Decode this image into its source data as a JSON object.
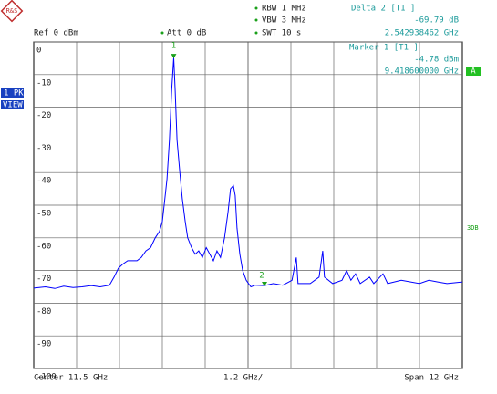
{
  "chart_data": {
    "type": "line",
    "annotations": {
      "ref": "Ref  0 dBm",
      "att": "Att  0 dB",
      "rbw": "RBW 1 MHz",
      "vbw": "VBW 3 MHz",
      "swt": "SWT 10 s",
      "delta_title": "Delta 2 [T1 ]",
      "delta_level": "-69.79 dB",
      "delta_freq": "2.542938462 GHz",
      "marker_title": "Marker 1 [T1 ]",
      "marker_level": "-4.78 dBm",
      "marker_freq": "9.418600000 GHz",
      "trace_mode_1": "1 PK",
      "trace_mode_2": "VIEW",
      "trace_flag": "A",
      "side_label": "3DB",
      "center": "Center  11.5 GHz",
      "per_div": "1.2 GHz/",
      "span": "Span  12 GHz"
    },
    "xlim": [
      5.5,
      17.5
    ],
    "ylim": [
      -100,
      0
    ],
    "yticks": [
      0,
      -10,
      -20,
      -30,
      -40,
      -50,
      -60,
      -70,
      -80,
      -90,
      -100
    ],
    "grid": true,
    "x": [
      5.5,
      5.83,
      6.09,
      6.34,
      6.6,
      6.85,
      7.11,
      7.36,
      7.62,
      7.75,
      7.87,
      8.0,
      8.13,
      8.39,
      8.51,
      8.64,
      8.77,
      8.9,
      9.02,
      9.1,
      9.15,
      9.23,
      9.3,
      9.36,
      9.42,
      9.46,
      9.51,
      9.59,
      9.66,
      9.74,
      9.81,
      9.92,
      10.02,
      10.12,
      10.22,
      10.33,
      10.43,
      10.53,
      10.63,
      10.73,
      10.84,
      10.94,
      11.01,
      11.09,
      11.14,
      11.19,
      11.27,
      11.35,
      11.45,
      11.58,
      11.7,
      11.96,
      12.21,
      12.47,
      12.73,
      12.85,
      12.9,
      13.24,
      13.49,
      13.59,
      13.64,
      13.87,
      14.13,
      14.26,
      14.38,
      14.51,
      14.64,
      14.9,
      15.02,
      15.28,
      15.41,
      15.79,
      16.3,
      16.56,
      16.81,
      17.07,
      17.5
    ],
    "series": [
      {
        "color": "#0000ff",
        "values": [
          -75.4,
          -75,
          -75.5,
          -74.8,
          -75.2,
          -75,
          -74.6,
          -75,
          -74.5,
          -72,
          -69.3,
          -68,
          -67,
          -67,
          -66,
          -64,
          -63,
          -60,
          -58,
          -55,
          -50,
          -42,
          -30,
          -15,
          -4.78,
          -15,
          -30,
          -40,
          -48,
          -55,
          -60,
          -63,
          -65,
          -64,
          -66,
          -63,
          -65,
          -67,
          -64,
          -66,
          -60,
          -52,
          -45,
          -44,
          -47,
          -57,
          -65,
          -70,
          -73,
          -75,
          -74.5,
          -74.6,
          -74,
          -74.5,
          -73,
          -66,
          -74,
          -74,
          -72,
          -64,
          -72,
          -74,
          -73,
          -70,
          -73,
          -71,
          -74,
          -72,
          -74,
          -71,
          -74,
          -73,
          -74,
          -73,
          -73.5,
          -74,
          -73.5
        ]
      }
    ],
    "markers": [
      {
        "label": "1",
        "x": 9.4186,
        "y": -4.78
      },
      {
        "label": "2",
        "x": 11.96,
        "y": -74.57
      }
    ]
  }
}
